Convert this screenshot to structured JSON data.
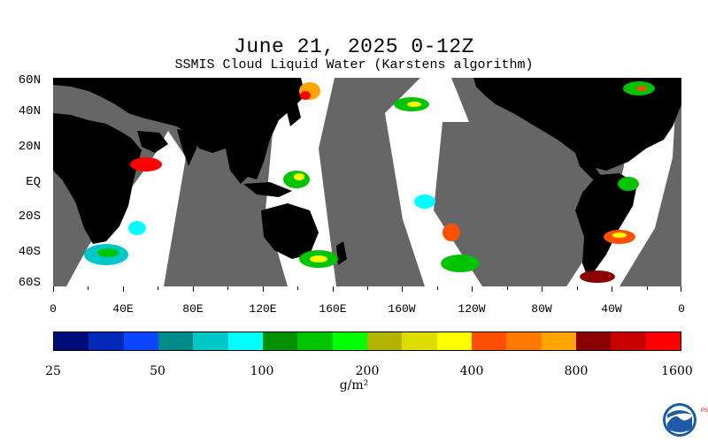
{
  "title": "June 21, 2025 0-12Z",
  "subtitle": "SSMIS Cloud Liquid Water (Karstens algorithm)",
  "lat_labels": [
    "60N",
    "40N",
    "20N",
    "EQ",
    "20S",
    "40S",
    "60S"
  ],
  "lon_labels": [
    "0",
    "40E",
    "80E",
    "120E",
    "160E",
    "160W",
    "120W",
    "80W",
    "40W",
    "0"
  ],
  "colorbar": {
    "colors": [
      "#000c7a",
      "#0029b8",
      "#0b45ff",
      "#008b8b",
      "#00c8c8",
      "#00ffff",
      "#009100",
      "#00c400",
      "#00ff00",
      "#b3b300",
      "#dddd00",
      "#ffff00",
      "#ff4f00",
      "#ff7a00",
      "#ffa500",
      "#8b0000",
      "#c80000",
      "#ff0000"
    ],
    "tick_labels": [
      "25",
      "50",
      "100",
      "200",
      "400",
      "800",
      "1600"
    ],
    "units": "g/m²"
  },
  "logo": {
    "icon": "noaa-logo-icon",
    "side_text": "PSL"
  }
}
